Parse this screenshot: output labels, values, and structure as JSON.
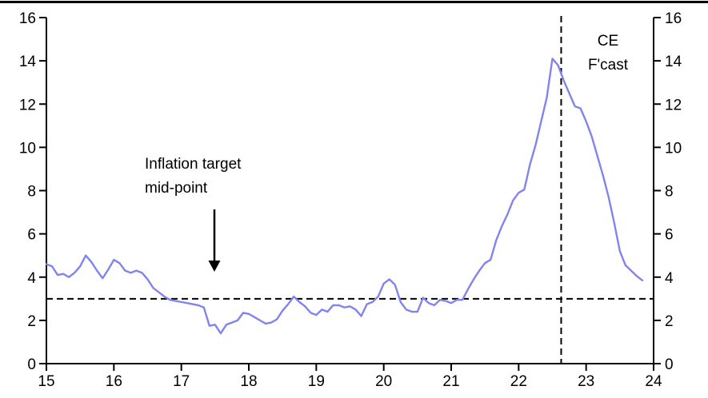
{
  "chart_data": {
    "type": "line",
    "title": "",
    "xlabel": "",
    "ylabel": "",
    "grid": false,
    "legend": "none",
    "x_axis": {
      "range": [
        15,
        24
      ],
      "tick_values": [
        15,
        16,
        17,
        18,
        19,
        20,
        21,
        22,
        23,
        24
      ],
      "tick_labels": [
        "15",
        "16",
        "17",
        "18",
        "19",
        "20",
        "21",
        "22",
        "23",
        "24"
      ]
    },
    "y_axis": {
      "range": [
        0,
        16
      ],
      "tick_values": [
        0,
        2,
        4,
        6,
        8,
        10,
        12,
        14,
        16
      ],
      "tick_labels": [
        "0",
        "2",
        "4",
        "6",
        "8",
        "10",
        "12",
        "14",
        "16"
      ],
      "sides": [
        "left",
        "right"
      ]
    },
    "series": [
      {
        "name": "inflation-yoy-pct",
        "color": "#8184ee",
        "start_year": 2015,
        "start_month": 1,
        "frequency": "monthly",
        "values": [
          4.6,
          4.5,
          4.1,
          4.15,
          4.0,
          4.2,
          4.5,
          5.0,
          4.7,
          4.3,
          3.95,
          4.35,
          4.8,
          4.65,
          4.3,
          4.2,
          4.3,
          4.2,
          3.9,
          3.5,
          3.3,
          3.1,
          2.95,
          2.9,
          2.85,
          2.8,
          2.75,
          2.7,
          2.6,
          1.75,
          1.8,
          1.4,
          1.8,
          1.9,
          2.0,
          2.35,
          2.3,
          2.15,
          2.0,
          1.85,
          1.9,
          2.05,
          2.45,
          2.75,
          3.1,
          2.85,
          2.65,
          2.35,
          2.25,
          2.5,
          2.4,
          2.7,
          2.7,
          2.6,
          2.65,
          2.5,
          2.2,
          2.75,
          2.85,
          3.1,
          3.7,
          3.9,
          3.65,
          2.85,
          2.5,
          2.4,
          2.4,
          3.05,
          2.8,
          2.7,
          2.95,
          2.9,
          2.8,
          2.95,
          2.95,
          3.45,
          3.9,
          4.3,
          4.65,
          4.8,
          5.7,
          6.35,
          6.9,
          7.55,
          7.9,
          8.05,
          9.2,
          10.1,
          11.2,
          12.3,
          14.1,
          13.8,
          13.1,
          12.5,
          11.9,
          11.8,
          11.2,
          10.5,
          9.6,
          8.7,
          7.7,
          6.5,
          5.2,
          4.55,
          4.3,
          4.05,
          3.85
        ]
      }
    ],
    "reference_lines": {
      "inflation_target_midpoint": {
        "orientation": "horizontal",
        "value": 3,
        "style": "dashed",
        "color": "#000000"
      },
      "ce_forecast_start": {
        "orientation": "vertical",
        "value": 22.63,
        "style": "dashed",
        "color": "#000000"
      }
    },
    "annotations": {
      "target": {
        "line1": "Inflation target",
        "line2": "mid-point",
        "arrow": "down"
      },
      "forecast": {
        "line1": "CE",
        "line2": "F'cast"
      }
    }
  }
}
